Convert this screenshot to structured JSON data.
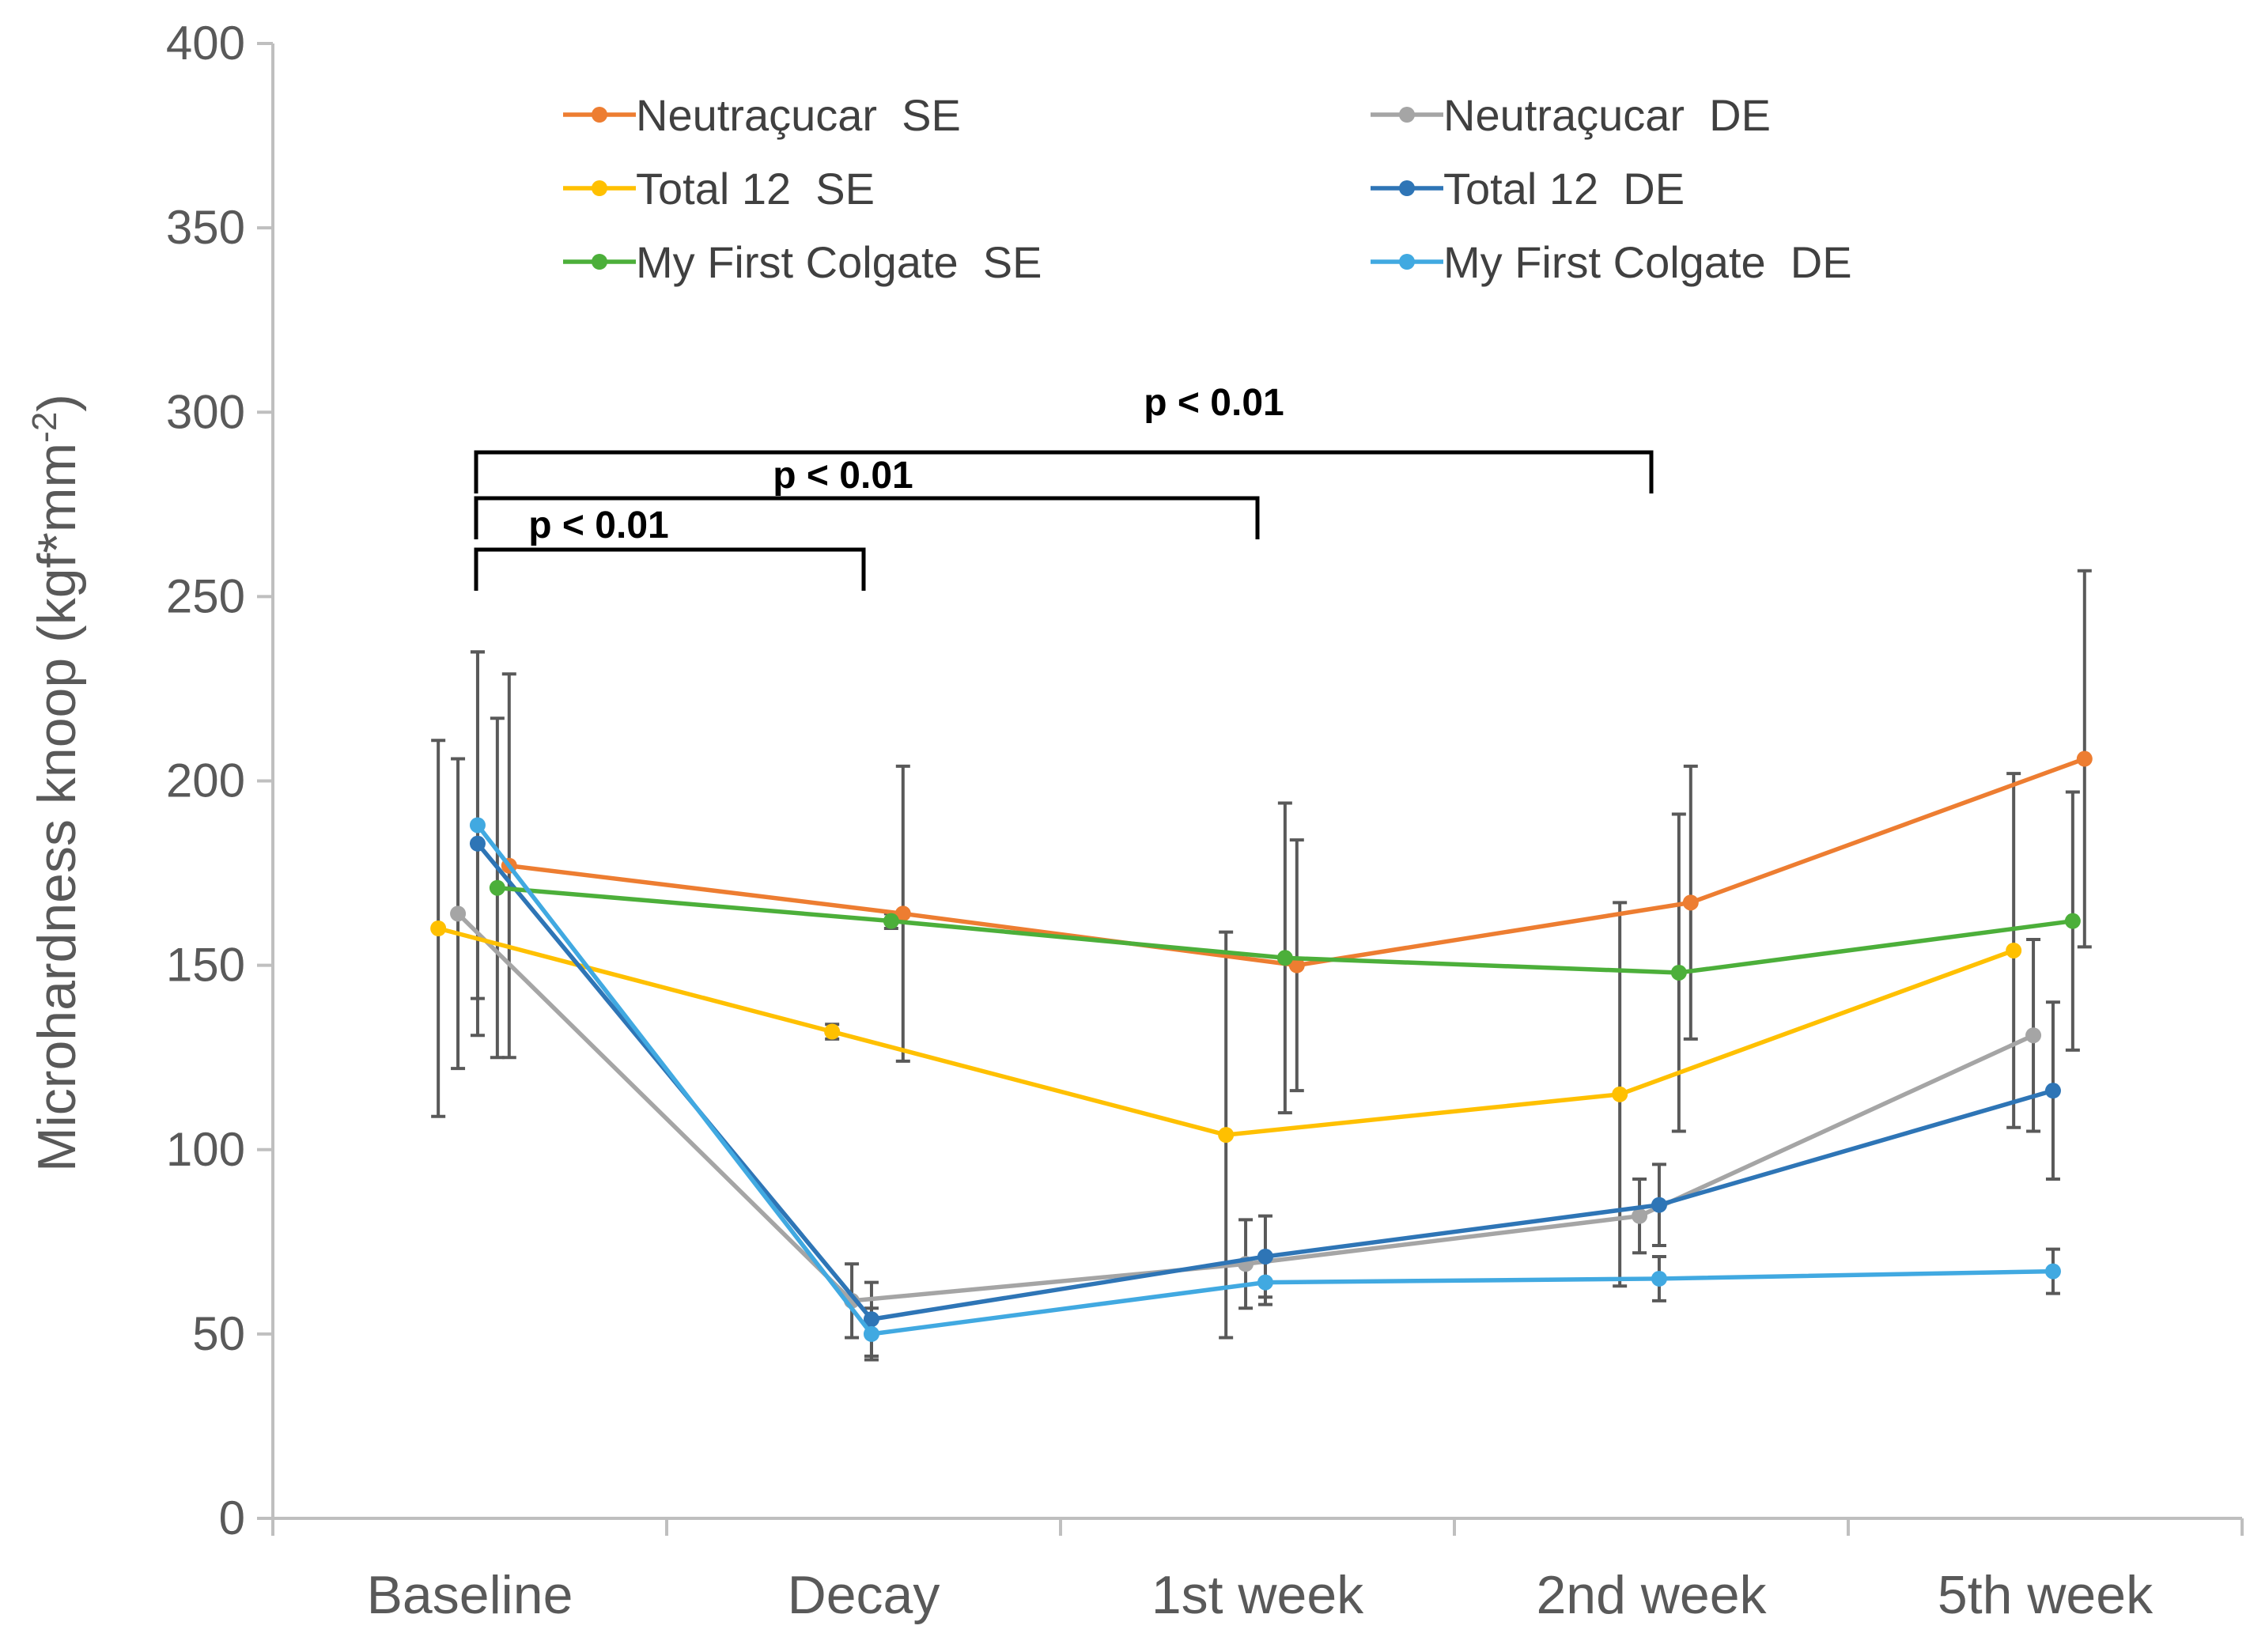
{
  "chart_data": {
    "type": "line",
    "title": "",
    "xlabel": "",
    "ylabel": "Microhardness knoop (kgf*mm",
    "ylabel_sup": "-2",
    "ylabel_close": ")",
    "ylim": [
      0,
      400
    ],
    "yticks": [
      0,
      50,
      100,
      150,
      200,
      250,
      300,
      350,
      400
    ],
    "categories": [
      "Baseline",
      "Decay",
      "1st week",
      "2nd week",
      "5th week"
    ],
    "legend_position": "top",
    "series": [
      {
        "name": "Neutraçucar  SE",
        "color": "#ED7D31",
        "offset": 0.1,
        "values": [
          177,
          164,
          150,
          167,
          206
        ],
        "err": [
          52,
          40,
          34,
          37,
          51
        ]
      },
      {
        "name": "Neutraçucar  DE",
        "color": "#A5A5A5",
        "offset": -0.03,
        "values": [
          164,
          59,
          69,
          82,
          131
        ],
        "err": [
          42,
          10,
          12,
          10,
          26
        ]
      },
      {
        "name": "Total 12  SE",
        "color": "#FFC000",
        "offset": -0.08,
        "values": [
          160,
          132,
          104,
          115,
          154
        ],
        "err": [
          51,
          2,
          55,
          52,
          48
        ]
      },
      {
        "name": "Total 12  DE",
        "color": "#2E75B6",
        "offset": 0.02,
        "values": [
          183,
          54,
          71,
          85,
          116
        ],
        "err": [
          52,
          10,
          11,
          11,
          24
        ]
      },
      {
        "name": "My First Colgate  SE",
        "color": "#4CAF3A",
        "offset": 0.07,
        "values": [
          171,
          162,
          152,
          148,
          162
        ],
        "err": [
          46,
          2,
          42,
          43,
          35
        ]
      },
      {
        "name": "My First Colgate  DE",
        "color": "#41A9E1",
        "offset": 0.02,
        "values": [
          188,
          50,
          64,
          65,
          67
        ],
        "err": [
          47,
          7,
          6,
          6,
          6
        ]
      }
    ],
    "annotations": [
      {
        "text": "p < 0.01",
        "from": "Baseline",
        "to": "Decay"
      },
      {
        "text": "p < 0.01",
        "from": "Baseline",
        "to": "1st week"
      },
      {
        "text": "p < 0.01",
        "from": "Baseline",
        "to": "2nd week"
      }
    ]
  }
}
